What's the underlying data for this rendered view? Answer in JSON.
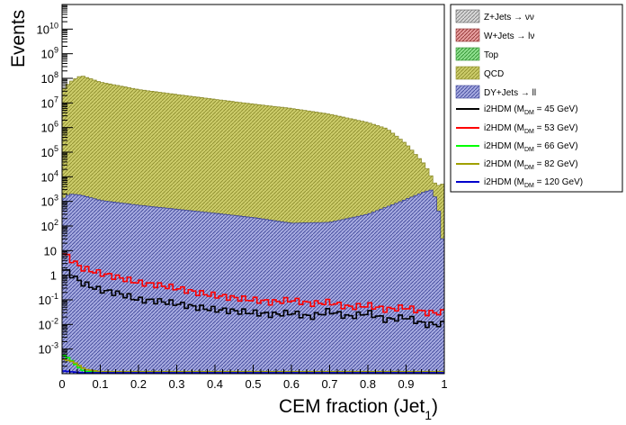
{
  "chart_data": {
    "type": "histogram",
    "xlabel": "CEM fraction (Jet",
    "xlabel_sub": "1",
    "xlabel_close": ")",
    "ylabel": "Events",
    "xlim": [
      0,
      1
    ],
    "ylim": [
      0.0001,
      100000000000
    ],
    "log_y": true,
    "grid": false,
    "legend_position": "top-right outside plot",
    "x_ticks": [
      {
        "v": 0,
        "label": "0"
      },
      {
        "v": 0.1,
        "label": "0.1"
      },
      {
        "v": 0.2,
        "label": "0.2"
      },
      {
        "v": 0.3,
        "label": "0.3"
      },
      {
        "v": 0.4,
        "label": "0.4"
      },
      {
        "v": 0.5,
        "label": "0.5"
      },
      {
        "v": 0.6,
        "label": "0.6"
      },
      {
        "v": 0.7,
        "label": "0.7"
      },
      {
        "v": 0.8,
        "label": "0.8"
      },
      {
        "v": 0.9,
        "label": "0.9"
      },
      {
        "v": 1,
        "label": "1"
      }
    ],
    "y_ticks": [
      {
        "exp": -3,
        "label": "10",
        "sup": "-3"
      },
      {
        "exp": -2,
        "label": "10",
        "sup": "-2"
      },
      {
        "exp": -1,
        "label": "10",
        "sup": "-1"
      },
      {
        "exp": 0,
        "label": "1",
        "sup": ""
      },
      {
        "exp": 1,
        "label": "10",
        "sup": ""
      },
      {
        "exp": 2,
        "label": "10",
        "sup": "2"
      },
      {
        "exp": 3,
        "label": "10",
        "sup": "3"
      },
      {
        "exp": 4,
        "label": "10",
        "sup": "4"
      },
      {
        "exp": 5,
        "label": "10",
        "sup": "5"
      },
      {
        "exp": 6,
        "label": "10",
        "sup": "6"
      },
      {
        "exp": 7,
        "label": "10",
        "sup": "7"
      },
      {
        "exp": 8,
        "label": "10",
        "sup": "8"
      },
      {
        "exp": 9,
        "label": "10",
        "sup": "9"
      },
      {
        "exp": 10,
        "label": "10",
        "sup": "10"
      }
    ],
    "stacked_backgrounds": [
      {
        "name": "DY+Jets → ll",
        "color": "#8f96d3",
        "hatch_color": "#3a4296",
        "total_at": [
          [
            0,
            1200
          ],
          [
            0.02,
            2000
          ],
          [
            0.05,
            1800
          ],
          [
            0.1,
            1100
          ],
          [
            0.2,
            700
          ],
          [
            0.3,
            480
          ],
          [
            0.4,
            330
          ],
          [
            0.5,
            220
          ],
          [
            0.6,
            130
          ],
          [
            0.7,
            140
          ],
          [
            0.8,
            300
          ],
          [
            0.88,
            900
          ],
          [
            0.95,
            2500
          ],
          [
            0.97,
            3000
          ],
          [
            0.985,
            400
          ],
          [
            0.99,
            30
          ]
        ]
      },
      {
        "name": "QCD",
        "color": "#c3c25c",
        "hatch_color": "#8a8a2a",
        "total_at": [
          [
            0,
            30000000
          ],
          [
            0.02,
            70000000
          ],
          [
            0.05,
            130000000
          ],
          [
            0.1,
            70000000
          ],
          [
            0.2,
            35000000
          ],
          [
            0.3,
            22000000
          ],
          [
            0.4,
            14000000
          ],
          [
            0.5,
            9000000
          ],
          [
            0.6,
            6000000
          ],
          [
            0.7,
            3500000
          ],
          [
            0.8,
            1600000
          ],
          [
            0.85,
            900000
          ],
          [
            0.9,
            220000
          ],
          [
            0.95,
            30000
          ],
          [
            0.98,
            4000
          ],
          [
            0.99,
            5000
          ]
        ]
      },
      {
        "name": "Top",
        "color": "#6fd36f",
        "hatch_color": "#2a8a2a"
      },
      {
        "name": "W+Jets → lν",
        "color": "#d36f6f",
        "hatch_color": "#8a2a2a"
      },
      {
        "name": "Z+Jets → νν",
        "color": "#c8c8c8",
        "hatch_color": "#7a7a7a"
      }
    ],
    "series": [
      {
        "name": "i2HDM (M",
        "sub": "DM",
        "mass": " =  45 GeV)",
        "color": "#000000",
        "points": [
          [
            0,
            1.8
          ],
          [
            0.02,
            1.2
          ],
          [
            0.05,
            0.5
          ],
          [
            0.1,
            0.25
          ],
          [
            0.15,
            0.18
          ],
          [
            0.2,
            0.1
          ],
          [
            0.25,
            0.09
          ],
          [
            0.3,
            0.07
          ],
          [
            0.35,
            0.05
          ],
          [
            0.4,
            0.04
          ],
          [
            0.45,
            0.035
          ],
          [
            0.5,
            0.03
          ],
          [
            0.55,
            0.025
          ],
          [
            0.6,
            0.03
          ],
          [
            0.65,
            0.02
          ],
          [
            0.7,
            0.035
          ],
          [
            0.75,
            0.02
          ],
          [
            0.8,
            0.03
          ],
          [
            0.85,
            0.015
          ],
          [
            0.9,
            0.02
          ],
          [
            0.95,
            0.01
          ]
        ]
      },
      {
        "name": "i2HDM (M",
        "sub": "DM",
        "mass": " =  53 GeV)",
        "color": "#ff0000",
        "points": [
          [
            0,
            8
          ],
          [
            0.02,
            5
          ],
          [
            0.05,
            2
          ],
          [
            0.1,
            1.2
          ],
          [
            0.15,
            0.8
          ],
          [
            0.2,
            0.5
          ],
          [
            0.25,
            0.4
          ],
          [
            0.3,
            0.3
          ],
          [
            0.35,
            0.2
          ],
          [
            0.4,
            0.15
          ],
          [
            0.45,
            0.12
          ],
          [
            0.5,
            0.1
          ],
          [
            0.55,
            0.08
          ],
          [
            0.6,
            0.1
          ],
          [
            0.65,
            0.07
          ],
          [
            0.7,
            0.08
          ],
          [
            0.75,
            0.05
          ],
          [
            0.8,
            0.06
          ],
          [
            0.85,
            0.04
          ],
          [
            0.9,
            0.05
          ],
          [
            0.95,
            0.03
          ]
        ]
      },
      {
        "name": "i2HDM (M",
        "sub": "DM",
        "mass": " =  66 GeV)",
        "color": "#00ff00",
        "points": [
          [
            0,
            0.0006
          ],
          [
            0.02,
            0.0004
          ],
          [
            0.04,
            0.0002
          ],
          [
            0.06,
            0.00012
          ]
        ]
      },
      {
        "name": "i2HDM (M",
        "sub": "DM",
        "mass": " =  82 GeV)",
        "color": "#a0a000",
        "points": [
          [
            0,
            0.0004
          ],
          [
            0.03,
            0.0003
          ],
          [
            0.06,
            0.00015
          ],
          [
            0.1,
            0.00012
          ]
        ]
      },
      {
        "name": "i2HDM (M",
        "sub": "DM",
        "mass": " = 120 GeV)",
        "color": "#0000cc",
        "points": [
          [
            0,
            0.00013
          ],
          [
            0.05,
            0.00011
          ]
        ]
      }
    ]
  }
}
